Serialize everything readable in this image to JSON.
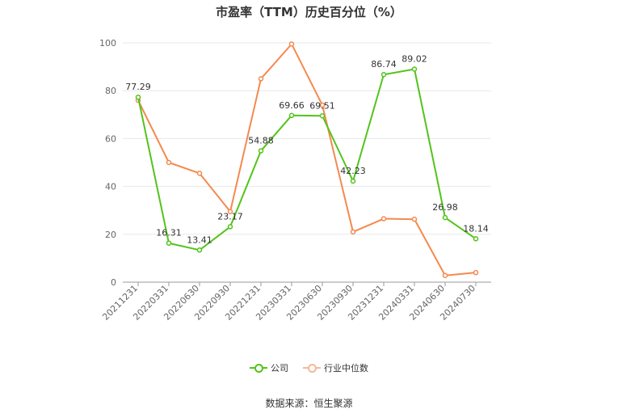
{
  "source_label": "数据来源：恒生聚源",
  "chart_data": {
    "type": "line",
    "title": "市盈率（TTM）历史百分位（%）",
    "xlabel": "",
    "ylabel": "",
    "ylim": [
      0,
      100
    ],
    "yticks": [
      "0",
      "20",
      "40",
      "60",
      "80",
      "100"
    ],
    "grid": true,
    "legend_position": "bottom",
    "categories": [
      "20211231",
      "20220331",
      "20220630",
      "20220930",
      "20221231",
      "20230331",
      "20230630",
      "20230930",
      "20231231",
      "20240331",
      "20240630",
      "20240730"
    ],
    "series": [
      {
        "name": "公司",
        "color": "#52c41a",
        "values": [
          77.29,
          16.31,
          13.41,
          23.17,
          54.88,
          69.66,
          69.51,
          42.23,
          86.74,
          89.02,
          26.98,
          18.14
        ],
        "labels": [
          "77.29",
          "16.31",
          "13.41",
          "23.17",
          "54.88",
          "69.66",
          "69.51",
          "42.23",
          "86.74",
          "89.02",
          "26.98",
          "18.14"
        ]
      },
      {
        "name": "行业中位数",
        "color": "#f5894f",
        "values": [
          76.0,
          50.0,
          45.5,
          29.5,
          85.0,
          99.5,
          74.0,
          21.0,
          26.5,
          26.3,
          2.8,
          4.0
        ]
      }
    ]
  }
}
